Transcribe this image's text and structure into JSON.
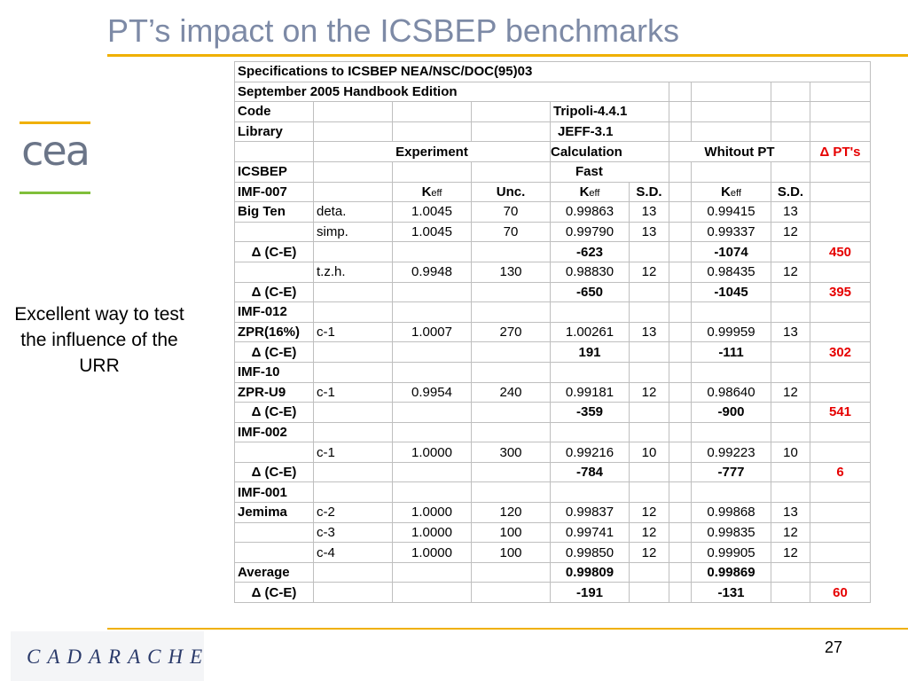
{
  "title": "PT’s impact on the ICSBEP benchmarks",
  "logo_text": "cea",
  "side_note": "Excellent way to test the influence of the URR",
  "footer_logo": "CADARACHE",
  "page_number": "27",
  "table": {
    "spec": "Specifications to ICSBEP NEA/NSC/DOC(95)03",
    "edition": "September 2005 Handbook Edition",
    "code_label": "Code",
    "code_value": "Tripoli-4.4.1",
    "library_label": "Library",
    "library_value": "JEFF-3.1",
    "hdr_experiment": "Experiment",
    "hdr_calculation": "Calculation",
    "hdr_without_pt": "Whitout PT",
    "hdr_delta_pt": "Δ PT's",
    "icsbep_label": "ICSBEP",
    "fast_label": "Fast",
    "imf007": "IMF-007",
    "keff": "K",
    "keff_sub": "eff",
    "unc": "Unc.",
    "sd": "S.D.",
    "rows": [
      {
        "c0": "Big Ten",
        "c1": "deta.",
        "c2": "1.0045",
        "c3": "70",
        "c4": "0.99863",
        "c5": "13",
        "c6": "",
        "c7": "0.99415",
        "c8": "13",
        "c9": ""
      },
      {
        "c0": "",
        "c1": "simp.",
        "c2": "1.0045",
        "c3": "70",
        "c4": "0.99790",
        "c5": "13",
        "c6": "",
        "c7": "0.99337",
        "c8": "12",
        "c9": ""
      },
      {
        "c0": "Δ (C-E)",
        "c1": "",
        "c2": "",
        "c3": "",
        "c4": "-623",
        "c5": "",
        "c6": "",
        "c7": "-1074",
        "c8": "",
        "c9": "450"
      },
      {
        "c0": "",
        "c1": "t.z.h.",
        "c2": "0.9948",
        "c3": "130",
        "c4": "0.98830",
        "c5": "12",
        "c6": "",
        "c7": "0.98435",
        "c8": "12",
        "c9": ""
      },
      {
        "c0": "Δ (C-E)",
        "c1": "",
        "c2": "",
        "c3": "",
        "c4": "-650",
        "c5": "",
        "c6": "",
        "c7": "-1045",
        "c8": "",
        "c9": "395"
      },
      {
        "c0": "IMF-012",
        "c1": "",
        "c2": "",
        "c3": "",
        "c4": "",
        "c5": "",
        "c6": "",
        "c7": "",
        "c8": "",
        "c9": ""
      },
      {
        "c0": "ZPR(16%)",
        "c1": "c-1",
        "c2": "1.0007",
        "c3": "270",
        "c4": "1.00261",
        "c5": "13",
        "c6": "",
        "c7": "0.99959",
        "c8": "13",
        "c9": ""
      },
      {
        "c0": "Δ (C-E)",
        "c1": "",
        "c2": "",
        "c3": "",
        "c4": "191",
        "c5": "",
        "c6": "",
        "c7": "-111",
        "c8": "",
        "c9": "302"
      },
      {
        "c0": "IMF-10",
        "c1": "",
        "c2": "",
        "c3": "",
        "c4": "",
        "c5": "",
        "c6": "",
        "c7": "",
        "c8": "",
        "c9": ""
      },
      {
        "c0": "ZPR-U9",
        "c1": "c-1",
        "c2": "0.9954",
        "c3": "240",
        "c4": "0.99181",
        "c5": "12",
        "c6": "",
        "c7": "0.98640",
        "c8": "12",
        "c9": ""
      },
      {
        "c0": "Δ (C-E)",
        "c1": "",
        "c2": "",
        "c3": "",
        "c4": "-359",
        "c5": "",
        "c6": "",
        "c7": "-900",
        "c8": "",
        "c9": "541"
      },
      {
        "c0": "IMF-002",
        "c1": "",
        "c2": "",
        "c3": "",
        "c4": "",
        "c5": "",
        "c6": "",
        "c7": "",
        "c8": "",
        "c9": ""
      },
      {
        "c0": "",
        "c1": "c-1",
        "c2": "1.0000",
        "c3": "300",
        "c4": "0.99216",
        "c5": "10",
        "c6": "",
        "c7": "0.99223",
        "c8": "10",
        "c9": ""
      },
      {
        "c0": "Δ (C-E)",
        "c1": "",
        "c2": "",
        "c3": "",
        "c4": "-784",
        "c5": "",
        "c6": "",
        "c7": "-777",
        "c8": "",
        "c9": "6"
      },
      {
        "c0": "IMF-001",
        "c1": "",
        "c2": "",
        "c3": "",
        "c4": "",
        "c5": "",
        "c6": "",
        "c7": "",
        "c8": "",
        "c9": ""
      },
      {
        "c0": "Jemima",
        "c1": "c-2",
        "c2": "1.0000",
        "c3": "120",
        "c4": "0.99837",
        "c5": "12",
        "c6": "",
        "c7": "0.99868",
        "c8": "13",
        "c9": ""
      },
      {
        "c0": "",
        "c1": "c-3",
        "c2": "1.0000",
        "c3": "100",
        "c4": "0.99741",
        "c5": "12",
        "c6": "",
        "c7": "0.99835",
        "c8": "12",
        "c9": ""
      },
      {
        "c0": "",
        "c1": "c-4",
        "c2": "1.0000",
        "c3": "100",
        "c4": "0.99850",
        "c5": "12",
        "c6": "",
        "c7": "0.99905",
        "c8": "12",
        "c9": ""
      },
      {
        "c0": "Average",
        "c1": "",
        "c2": "",
        "c3": "",
        "c4": "0.99809",
        "c5": "",
        "c6": "",
        "c7": "0.99869",
        "c8": "",
        "c9": ""
      },
      {
        "c0": "Δ (C-E)",
        "c1": "",
        "c2": "",
        "c3": "",
        "c4": "-191",
        "c5": "",
        "c6": "",
        "c7": "-131",
        "c8": "",
        "c9": "60"
      }
    ]
  }
}
